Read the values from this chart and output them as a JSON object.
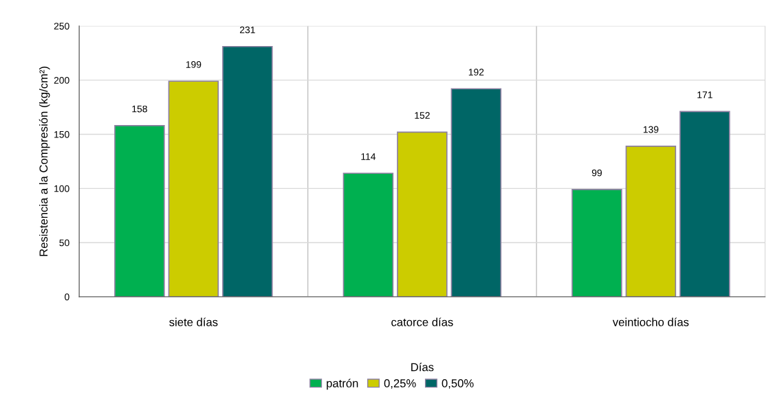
{
  "chart_data": {
    "type": "bar",
    "ylabel": "Resistencia a la Compresión (kg/cm²)",
    "xlabel": "Días",
    "categories": [
      "siete días",
      "catorce días",
      "veintiocho días"
    ],
    "series": [
      {
        "name": "patrón",
        "color": "#00b050",
        "values": [
          158,
          114,
          99
        ]
      },
      {
        "name": "0,25%",
        "color": "#cccc00",
        "values": [
          199,
          152,
          139
        ]
      },
      {
        "name": "0,50%",
        "color": "#006666",
        "values": [
          231,
          192,
          171
        ]
      }
    ],
    "ylim": [
      0,
      250
    ],
    "yticks": [
      0,
      50,
      100,
      150,
      200,
      250
    ],
    "grid": true,
    "legend": "bottom",
    "data_labels": true
  }
}
